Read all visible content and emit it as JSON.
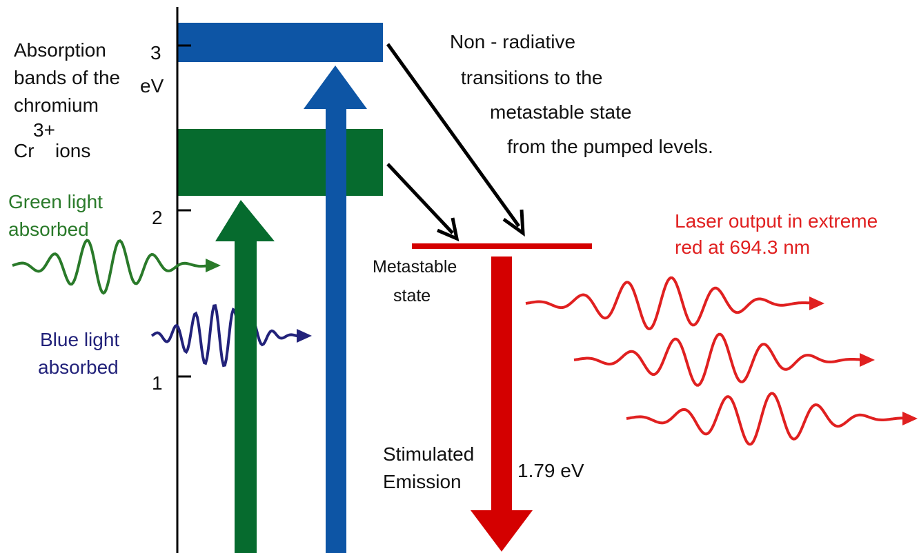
{
  "absorption_label": {
    "lines": [
      "Absorption",
      "bands of the",
      "chromium"
    ],
    "ion_symbol": "Cr",
    "ion_charge": "3+",
    "ion_suffix": "ions"
  },
  "axis": {
    "unit": "eV",
    "ticks": [
      "3",
      "2",
      "1"
    ]
  },
  "green_light": {
    "lines": [
      "Green light",
      "absorbed"
    ]
  },
  "blue_light": {
    "lines": [
      "Blue light",
      "absorbed"
    ]
  },
  "non_radiative": {
    "lines": [
      "Non - radiative",
      "transitions to the",
      "metastable state",
      "from the pumped levels."
    ]
  },
  "metastable": {
    "lines": [
      "Metastable",
      "state"
    ]
  },
  "laser_output": {
    "lines": [
      "Laser output in extreme",
      "red at 694.3 nm"
    ]
  },
  "stimulated": {
    "lines": [
      "Stimulated",
      "Emission"
    ]
  },
  "transition_energy": "1.79 eV"
}
